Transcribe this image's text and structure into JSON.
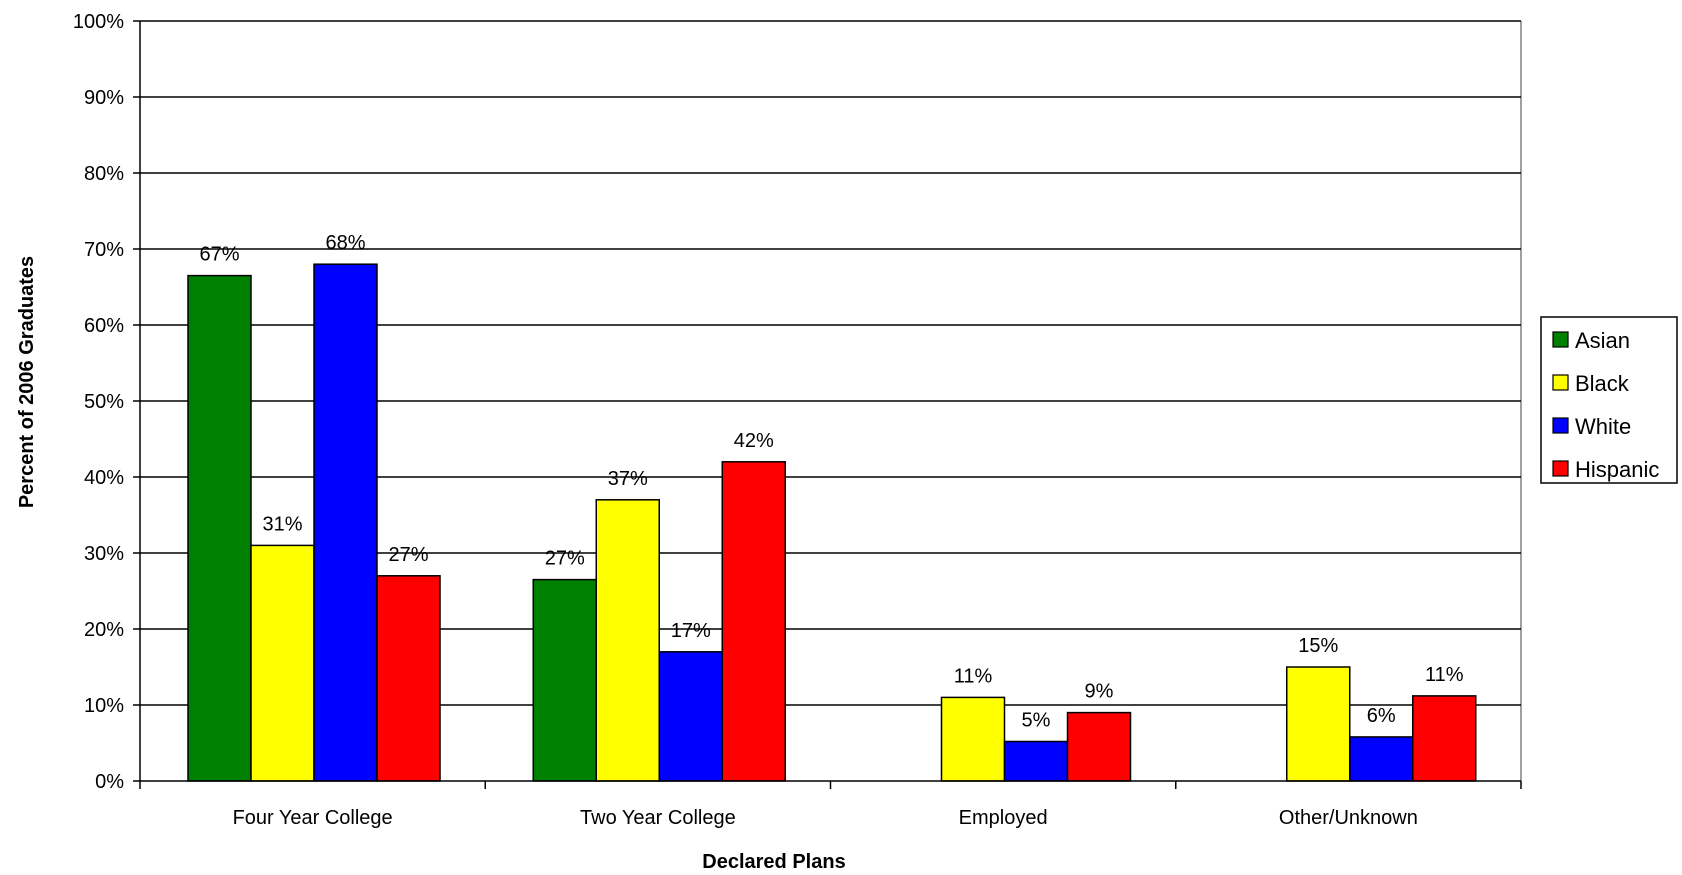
{
  "chart_data": {
    "type": "bar",
    "title": "",
    "xlabel": "Declared Plans",
    "ylabel": "Percent of 2006 Graduates",
    "ylim": [
      0,
      100
    ],
    "yticks": [
      "0%",
      "10%",
      "20%",
      "30%",
      "40%",
      "50%",
      "60%",
      "70%",
      "80%",
      "90%",
      "100%"
    ],
    "grid": true,
    "legend_position": "right",
    "categories": [
      "Four Year College",
      "Two Year College",
      "Employed",
      "Other/Unknown"
    ],
    "series": [
      {
        "name": "Asian",
        "color": "#008000",
        "values": [
          66.5,
          26.5,
          null,
          null
        ],
        "labels": [
          "67%",
          "27%",
          "",
          ""
        ]
      },
      {
        "name": "Black",
        "color": "#ffff00",
        "values": [
          31,
          37,
          11,
          15
        ],
        "labels": [
          "31%",
          "37%",
          "11%",
          "15%"
        ]
      },
      {
        "name": "White",
        "color": "#0000ff",
        "values": [
          68,
          17,
          5.2,
          5.8
        ],
        "labels": [
          "68%",
          "17%",
          "5%",
          "6%"
        ]
      },
      {
        "name": "Hispanic",
        "color": "#ff0000",
        "values": [
          27,
          42,
          9,
          11.2
        ],
        "labels": [
          "27%",
          "42%",
          "9%",
          "11%"
        ]
      }
    ]
  }
}
